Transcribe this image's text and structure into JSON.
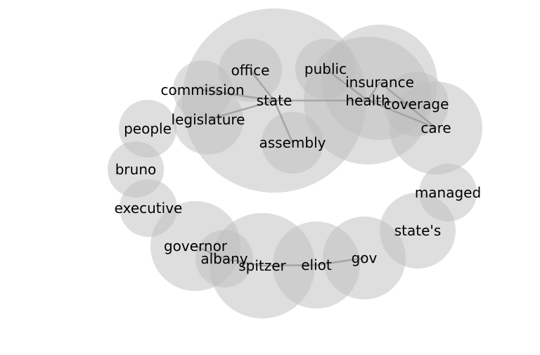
{
  "colors": {
    "background": "#ffffff",
    "node_fill": "#bdbdbd",
    "edge": "#9e9e9e",
    "label": "#000000"
  },
  "nodes": [
    {
      "id": "state",
      "label": "state"
    },
    {
      "id": "health",
      "label": "health"
    },
    {
      "id": "insurance",
      "label": "insurance"
    },
    {
      "id": "office",
      "label": "office"
    },
    {
      "id": "public",
      "label": "public"
    },
    {
      "id": "commission",
      "label": "commission"
    },
    {
      "id": "legislature",
      "label": "legislature"
    },
    {
      "id": "assembly",
      "label": "assembly"
    },
    {
      "id": "coverage",
      "label": "coverage"
    },
    {
      "id": "care",
      "label": "care"
    },
    {
      "id": "people",
      "label": "people"
    },
    {
      "id": "bruno",
      "label": "bruno"
    },
    {
      "id": "executive",
      "label": "executive"
    },
    {
      "id": "managed",
      "label": "managed"
    },
    {
      "id": "states",
      "label": "state's"
    },
    {
      "id": "governor",
      "label": "governor"
    },
    {
      "id": "albany",
      "label": "albany"
    },
    {
      "id": "spitzer",
      "label": "spitzer"
    },
    {
      "id": "eliot",
      "label": "eliot"
    },
    {
      "id": "gov",
      "label": "gov"
    }
  ],
  "edges": [
    [
      "state",
      "health"
    ],
    [
      "state",
      "office"
    ],
    [
      "state",
      "assembly"
    ],
    [
      "state",
      "legislature"
    ],
    [
      "state",
      "commission"
    ],
    [
      "health",
      "insurance"
    ],
    [
      "health",
      "public"
    ],
    [
      "health",
      "coverage"
    ],
    [
      "health",
      "care"
    ],
    [
      "insurance",
      "care"
    ],
    [
      "spitzer",
      "eliot"
    ],
    [
      "eliot",
      "gov"
    ],
    [
      "spitzer",
      "albany"
    ],
    [
      "albany",
      "governor"
    ]
  ]
}
